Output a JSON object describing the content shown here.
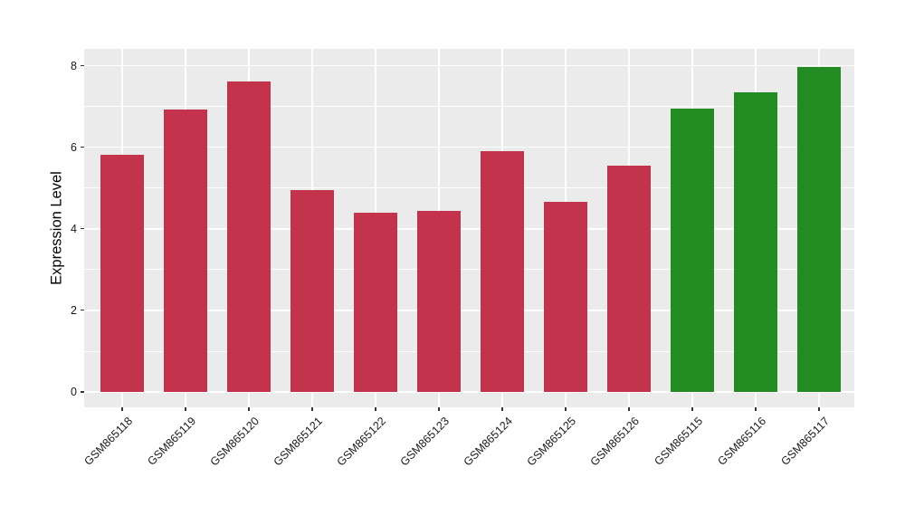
{
  "chart_data": {
    "type": "bar",
    "title": "",
    "xlabel": "",
    "ylabel": "Expression Level",
    "categories": [
      "GSM865118",
      "GSM865119",
      "GSM865120",
      "GSM865121",
      "GSM865122",
      "GSM865123",
      "GSM865124",
      "GSM865125",
      "GSM865126",
      "GSM865115",
      "GSM865116",
      "GSM865117"
    ],
    "values": [
      5.82,
      6.93,
      7.61,
      4.96,
      4.4,
      4.45,
      5.91,
      4.66,
      5.55,
      6.95,
      7.35,
      7.96
    ],
    "colors": [
      "#C3334C",
      "#C3334C",
      "#C3334C",
      "#C3334C",
      "#C3334C",
      "#C3334C",
      "#C3334C",
      "#C3334C",
      "#C3334C",
      "#228B22",
      "#228B22",
      "#228B22"
    ],
    "palette": {
      "red_group": "#C3334C",
      "green_group": "#228B22"
    },
    "ylim": [
      0,
      8.4
    ],
    "yticks": [
      0,
      2,
      4,
      6,
      8
    ],
    "minor_yticks": [
      1,
      3,
      5,
      7
    ],
    "grid": true,
    "legend": "none",
    "panel_background": "#EBEBEB",
    "gridline_color": "#FFFFFF",
    "axis_text_color": "#1A1A1A",
    "x_label_rotation": -45
  }
}
